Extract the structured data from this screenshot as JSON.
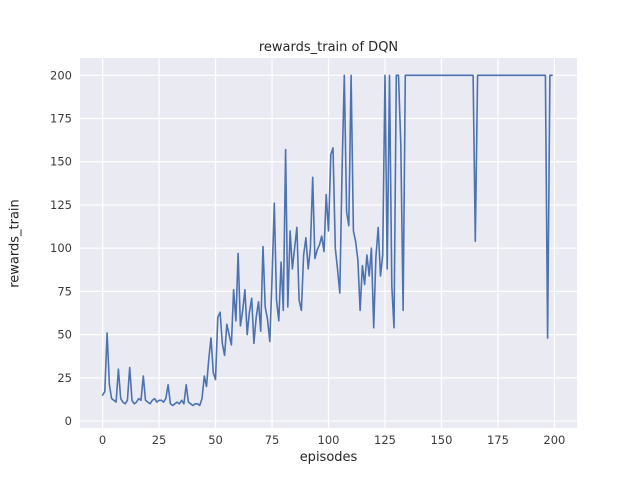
{
  "chart_data": {
    "type": "line",
    "title": "rewards_train of DQN",
    "xlabel": "episodes",
    "ylabel": "rewards_train",
    "x_ticks": [
      0,
      25,
      50,
      75,
      100,
      125,
      150,
      175,
      200
    ],
    "y_ticks": [
      0,
      25,
      50,
      75,
      100,
      125,
      150,
      175,
      200
    ],
    "xlim": [
      -10,
      210
    ],
    "ylim": [
      -4,
      210
    ],
    "grid": true,
    "legend": "none",
    "bg_color": "#eaeaf2",
    "grid_color": "#ffffff",
    "line_color": "#4c72b0",
    "tick_color": "#3a3a3a",
    "series": [
      {
        "name": "rewards_train",
        "x_is_index": true,
        "y": [
          15,
          17,
          51,
          21,
          13,
          12,
          11,
          30,
          13,
          11,
          10,
          12,
          31,
          12,
          10,
          11,
          13,
          12,
          26,
          12,
          11,
          10,
          12,
          13,
          11,
          12,
          12,
          11,
          13,
          21,
          10,
          9,
          10,
          11,
          10,
          12,
          10,
          21,
          11,
          10,
          9,
          10,
          10,
          9,
          13,
          26,
          20,
          36,
          48,
          28,
          24,
          60,
          63,
          45,
          38,
          56,
          50,
          44,
          76,
          58,
          97,
          55,
          64,
          76,
          50,
          63,
          71,
          45,
          60,
          69,
          52,
          101,
          66,
          59,
          46,
          82,
          126,
          70,
          58,
          92,
          64,
          157,
          66,
          110,
          88,
          100,
          112,
          70,
          64,
          96,
          106,
          88,
          100,
          141,
          94,
          99,
          102,
          107,
          98,
          131,
          110,
          154,
          158,
          100,
          88,
          74,
          146,
          200,
          121,
          113,
          200,
          110,
          104,
          93,
          64,
          90,
          79,
          96,
          84,
          100,
          54,
          95,
          112,
          84,
          96,
          200,
          88,
          200,
          78,
          54,
          200,
          200,
          160,
          64,
          200,
          200,
          200,
          200,
          200,
          200,
          200,
          200,
          200,
          200,
          200,
          200,
          200,
          200,
          200,
          200,
          200,
          200,
          200,
          200,
          200,
          200,
          200,
          200,
          200,
          200,
          200,
          200,
          200,
          200,
          200,
          104,
          200,
          200,
          200,
          200,
          200,
          200,
          200,
          200,
          200,
          200,
          200,
          200,
          200,
          200,
          200,
          200,
          200,
          200,
          200,
          200,
          200,
          200,
          200,
          200,
          200,
          200,
          200,
          200,
          200,
          200,
          200,
          48,
          200,
          200
        ]
      }
    ]
  }
}
